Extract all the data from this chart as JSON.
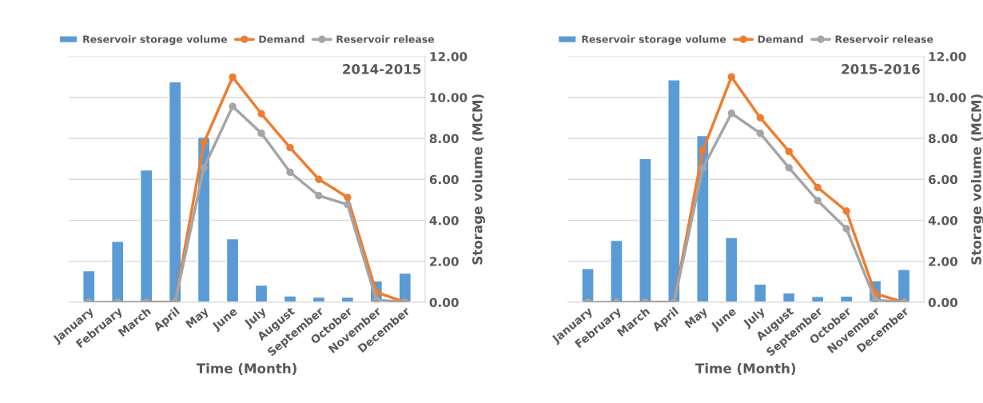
{
  "chart_data": [
    {
      "type": "bar",
      "title": "2014-2015",
      "xlabel": "Time (Month)",
      "ylabel": "Storage volume (MCM)",
      "categories": [
        "January",
        "February",
        "March",
        "April",
        "May",
        "June",
        "July",
        "August",
        "September",
        "October",
        "November",
        "December"
      ],
      "series": [
        {
          "name": "Reservoir storage volume",
          "color": "#5b9bd5",
          "values": [
            1.54,
            2.97,
            6.46,
            10.76,
            8.06,
            3.1,
            0.84,
            0.31,
            0.25,
            0.25,
            1.04,
            1.42
          ]
        },
        {
          "name": "Demand",
          "type": "line",
          "color": "#ed7d31",
          "marker": "circle",
          "values": [
            null,
            null,
            0,
            0,
            7.78,
            10.99,
            9.2,
            7.55,
            6.0,
            5.12,
            0.49,
            0
          ]
        },
        {
          "name": "Reservoir release",
          "type": "line",
          "color": "#a5a5a5",
          "marker": "circle",
          "values": [
            0,
            0,
            0,
            0,
            6.57,
            9.56,
            8.25,
            6.35,
            5.2,
            4.77,
            0.12,
            0
          ]
        }
      ],
      "ylim": [
        0,
        12
      ],
      "yticks": [
        {
          "value": 0,
          "label": "0.00"
        },
        {
          "value": 2,
          "label": "2.00"
        },
        {
          "value": 4,
          "label": "4.00"
        },
        {
          "value": 6,
          "label": "6.00"
        },
        {
          "value": 8,
          "label": "8.00"
        },
        {
          "value": 10,
          "label": "10.00"
        },
        {
          "value": 12,
          "label": "12.00"
        }
      ],
      "grid": "y",
      "legend": "top"
    },
    {
      "type": "bar",
      "title": "2015-2016",
      "xlabel": "Time (Month)",
      "ylabel": "Storage volume (MCM)",
      "categories": [
        "January",
        "February",
        "March",
        "April",
        "May",
        "June",
        "July",
        "August",
        "September",
        "October",
        "November",
        "December"
      ],
      "series": [
        {
          "name": "Reservoir storage volume",
          "color": "#5b9bd5",
          "values": [
            1.65,
            3.02,
            7.01,
            10.86,
            8.14,
            3.16,
            0.89,
            0.46,
            0.28,
            0.3,
            1.05,
            1.6
          ]
        },
        {
          "name": "Demand",
          "type": "line",
          "color": "#ed7d31",
          "marker": "circle",
          "values": [
            null,
            null,
            0,
            0,
            7.39,
            11.0,
            9.01,
            7.36,
            5.6,
            4.45,
            0.42,
            0
          ]
        },
        {
          "name": "Reservoir release",
          "type": "line",
          "color": "#a5a5a5",
          "marker": "circle",
          "values": [
            0,
            0,
            0,
            0,
            6.54,
            9.22,
            8.25,
            6.56,
            4.96,
            3.59,
            0.11,
            0
          ]
        }
      ],
      "ylim": [
        0,
        12
      ],
      "yticks": [
        {
          "value": 0,
          "label": "0.00"
        },
        {
          "value": 2,
          "label": "2.00"
        },
        {
          "value": 4,
          "label": "4.00"
        },
        {
          "value": 6,
          "label": "6.00"
        },
        {
          "value": 8,
          "label": "8.00"
        },
        {
          "value": 10,
          "label": "10.00"
        },
        {
          "value": 12,
          "label": "12.00"
        }
      ],
      "grid": "y",
      "legend": "top"
    }
  ]
}
